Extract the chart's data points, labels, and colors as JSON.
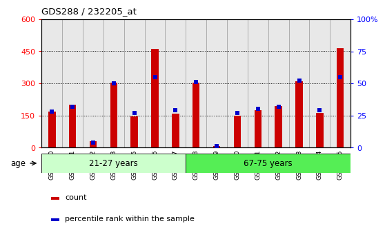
{
  "title": "GDS288 / 232205_at",
  "categories": [
    "GSM5300",
    "GSM5301",
    "GSM5302",
    "GSM5303",
    "GSM5305",
    "GSM5306",
    "GSM5307",
    "GSM5308",
    "GSM5309",
    "GSM5310",
    "GSM5311",
    "GSM5312",
    "GSM5313",
    "GSM5314",
    "GSM5315"
  ],
  "counts": [
    170,
    200,
    30,
    305,
    145,
    460,
    158,
    305,
    8,
    148,
    175,
    195,
    310,
    162,
    465
  ],
  "percentiles": [
    28,
    32,
    4,
    50,
    27,
    55,
    29,
    51,
    1,
    27,
    30,
    32,
    52,
    29,
    55
  ],
  "ylim_left": [
    0,
    600
  ],
  "ylim_right": [
    0,
    100
  ],
  "left_ticks": [
    0,
    150,
    300,
    450,
    600
  ],
  "right_ticks": [
    0,
    25,
    50,
    75,
    100
  ],
  "right_tick_labels": [
    "0",
    "25",
    "50",
    "75",
    "100%"
  ],
  "bar_color": "#cc0000",
  "dot_color": "#0000cc",
  "age_group1": "21-27 years",
  "age_group2": "67-75 years",
  "split_index": 7,
  "age_bg1": "#ccffcc",
  "age_bg2": "#55ee55",
  "bg_plot": "#e8e8e8",
  "bar_width": 0.35,
  "legend_red": "count",
  "legend_blue": "percentile rank within the sample",
  "age_label": "age"
}
